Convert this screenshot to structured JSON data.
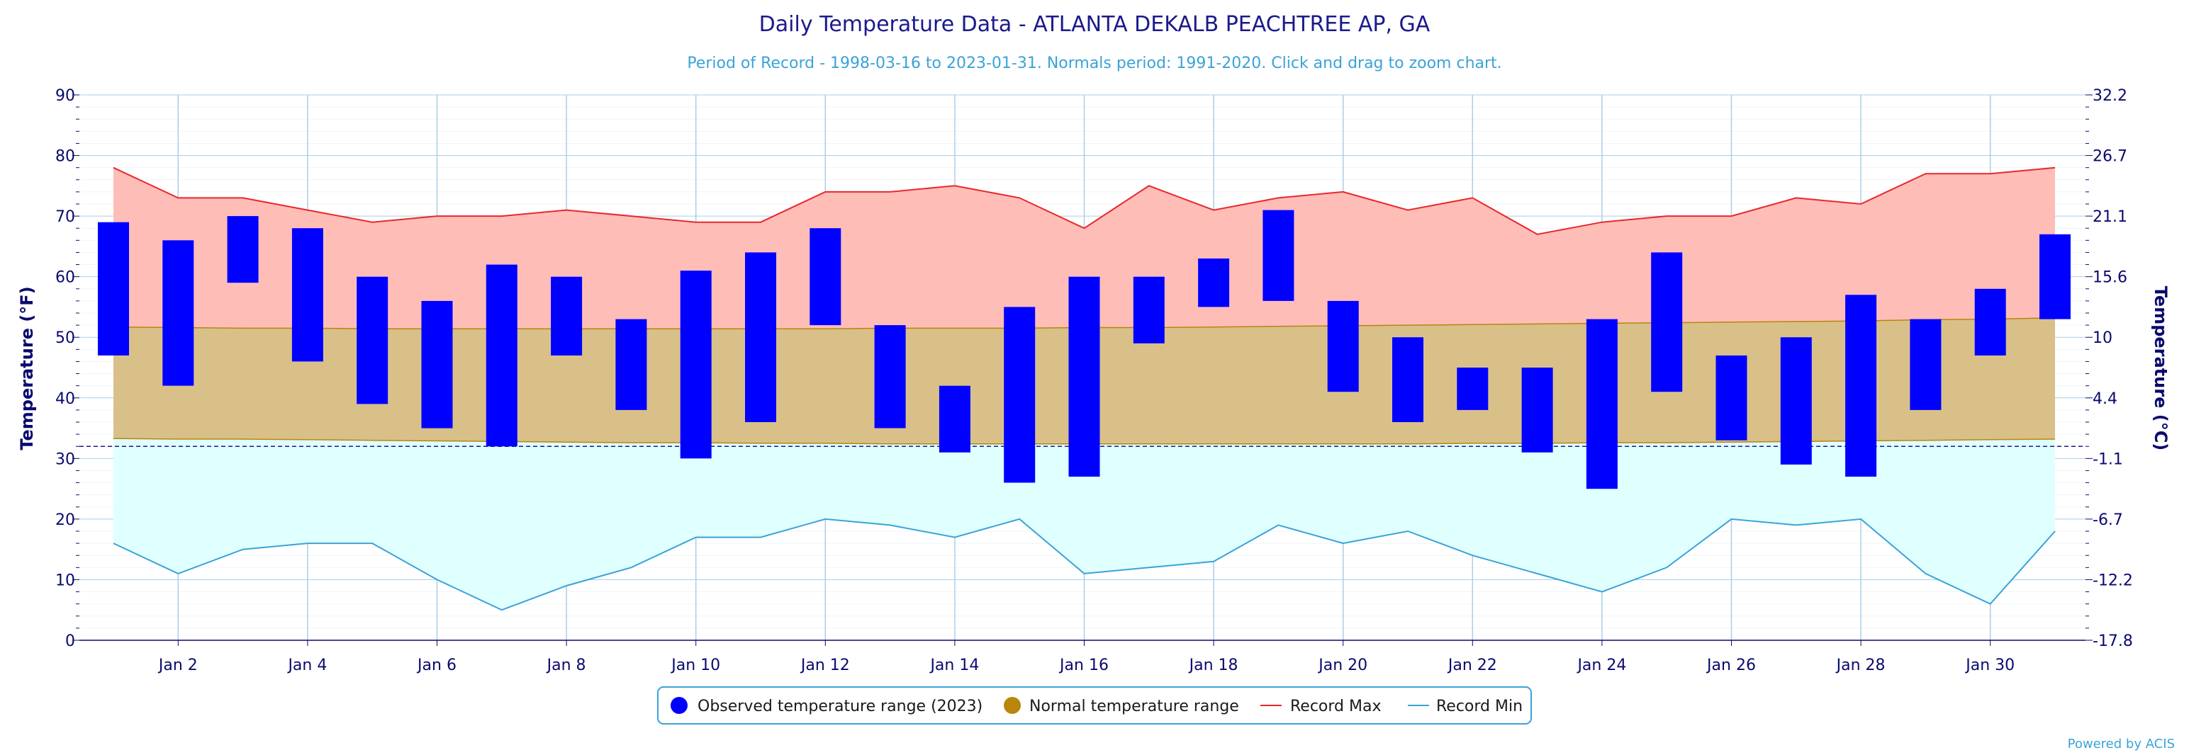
{
  "chart_data": {
    "type": "bar",
    "title": "Daily Temperature Data - ATLANTA DEKALB PEACHTREE AP, GA",
    "subtitle": "Period of Record - 1998-03-16 to 2023-01-31. Normals period: 1991-2020. Click and drag to zoom chart.",
    "ylabel_left": "Temperature (°F)",
    "ylabel_right": "Temperature (°C)",
    "ylim": [
      0,
      90
    ],
    "y_ticks_f": [
      0,
      10,
      20,
      30,
      40,
      50,
      60,
      70,
      80,
      90
    ],
    "y_ticks_c": [
      "-17.8",
      "-12.2",
      "-6.7",
      "-1.1",
      "4.4",
      "10",
      "15.6",
      "21.1",
      "26.7",
      "32.2"
    ],
    "x_tick_labels": [
      "Jan 2",
      "Jan 4",
      "Jan 6",
      "Jan 8",
      "Jan 10",
      "Jan 12",
      "Jan 14",
      "Jan 16",
      "Jan 18",
      "Jan 20",
      "Jan 22",
      "Jan 24",
      "Jan 26",
      "Jan 28",
      "Jan 30"
    ],
    "freezing_line_f": 32,
    "grid": true,
    "legend_position": "bottom-center",
    "days": [
      1,
      2,
      3,
      4,
      5,
      6,
      7,
      8,
      9,
      10,
      11,
      12,
      13,
      14,
      15,
      16,
      17,
      18,
      19,
      20,
      21,
      22,
      23,
      24,
      25,
      26,
      27,
      28,
      29,
      30,
      31
    ],
    "series": [
      {
        "name": "Observed temperature range (2023)",
        "color": "#0000ff",
        "low": [
          47,
          42,
          59,
          46,
          39,
          35,
          32,
          47,
          38,
          30,
          36,
          52,
          35,
          31,
          26,
          27,
          49,
          55,
          56,
          41,
          36,
          38,
          31,
          25,
          41,
          33,
          29,
          27,
          38,
          47,
          53
        ],
        "high": [
          69,
          66,
          70,
          68,
          60,
          56,
          62,
          60,
          53,
          61,
          64,
          68,
          52,
          42,
          55,
          60,
          60,
          63,
          71,
          56,
          50,
          45,
          45,
          53,
          64,
          47,
          50,
          57,
          53,
          58,
          67
        ]
      },
      {
        "name": "Normal temperature range",
        "color": "#b8860b",
        "fill": "#d9c089",
        "low": [
          33.3,
          33.2,
          33.2,
          33.1,
          33.0,
          32.9,
          32.8,
          32.7,
          32.6,
          32.6,
          32.5,
          32.5,
          32.4,
          32.4,
          32.4,
          32.4,
          32.4,
          32.4,
          32.4,
          32.4,
          32.4,
          32.5,
          32.5,
          32.6,
          32.6,
          32.7,
          32.8,
          32.9,
          33.0,
          33.1,
          33.2
        ],
        "high": [
          51.7,
          51.6,
          51.5,
          51.5,
          51.4,
          51.4,
          51.4,
          51.4,
          51.4,
          51.4,
          51.4,
          51.4,
          51.5,
          51.5,
          51.5,
          51.6,
          51.6,
          51.7,
          51.8,
          51.9,
          52.0,
          52.1,
          52.2,
          52.3,
          52.4,
          52.5,
          52.6,
          52.7,
          52.9,
          53.0,
          53.2
        ]
      },
      {
        "name": "Record Max",
        "color": "#e8282c",
        "fill": "#ffbdb8",
        "values": [
          78,
          73,
          73,
          71,
          69,
          70,
          70,
          71,
          70,
          69,
          69,
          74,
          74,
          75,
          73,
          68,
          75,
          71,
          73,
          74,
          71,
          73,
          67,
          69,
          70,
          70,
          73,
          72,
          77,
          77,
          78
        ]
      },
      {
        "name": "Record Min",
        "color": "#3aa3d8",
        "fill": "#e0ffff",
        "values": [
          16,
          11,
          15,
          16,
          16,
          10,
          5,
          9,
          12,
          17,
          17,
          20,
          19,
          17,
          20,
          11,
          12,
          13,
          19,
          16,
          18,
          14,
          11,
          8,
          12,
          20,
          19,
          20,
          11,
          6,
          18
        ]
      }
    ],
    "credit": "Powered by ACIS"
  }
}
